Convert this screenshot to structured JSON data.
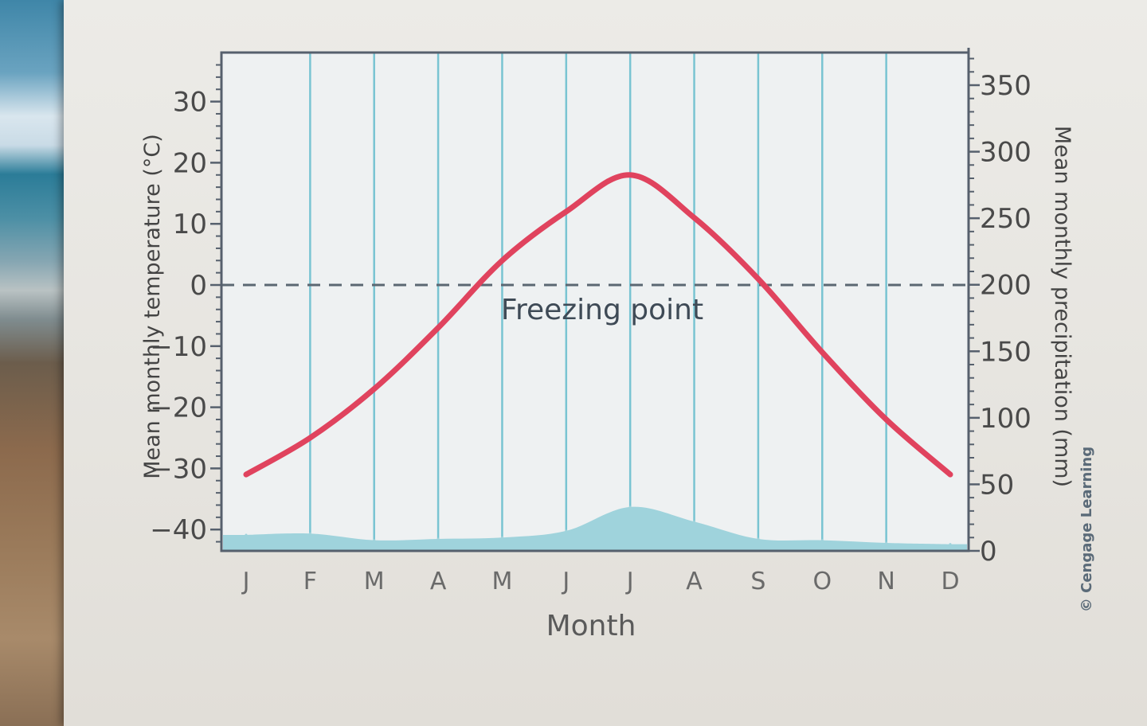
{
  "chart_data": {
    "type": "line",
    "title": "",
    "xlabel": "Month",
    "ylabel_left": "Mean monthly temperature (°C)",
    "ylabel_right": "Mean monthly precipitation (mm)",
    "categories": [
      "J",
      "F",
      "M",
      "A",
      "M",
      "J",
      "J",
      "A",
      "S",
      "O",
      "N",
      "D"
    ],
    "ylim_left": [
      -40,
      30
    ],
    "yticks_left": [
      30,
      20,
      10,
      0,
      -10,
      -20,
      -30,
      -40
    ],
    "ylim_right": [
      0,
      350
    ],
    "yticks_right": [
      350,
      300,
      250,
      200,
      150,
      100,
      50,
      0
    ],
    "series": [
      {
        "name": "Mean monthly temperature",
        "axis": "left",
        "kind": "line",
        "color": "#e0435e",
        "values": [
          -31,
          -25,
          -17,
          -7,
          4,
          12,
          18,
          11,
          1,
          -11,
          -22,
          -31
        ]
      },
      {
        "name": "Mean monthly precipitation",
        "axis": "right",
        "kind": "area",
        "color": "#9fd3dc",
        "values": [
          12,
          13,
          8,
          9,
          10,
          15,
          33,
          22,
          9,
          8,
          6,
          5
        ]
      }
    ],
    "reference_line": {
      "value": 0,
      "axis": "left",
      "label": "Freezing point",
      "style": "dashed"
    },
    "grid": "vertical",
    "grid_color": "#79c4d2",
    "credit": "© Cengage Learning"
  }
}
